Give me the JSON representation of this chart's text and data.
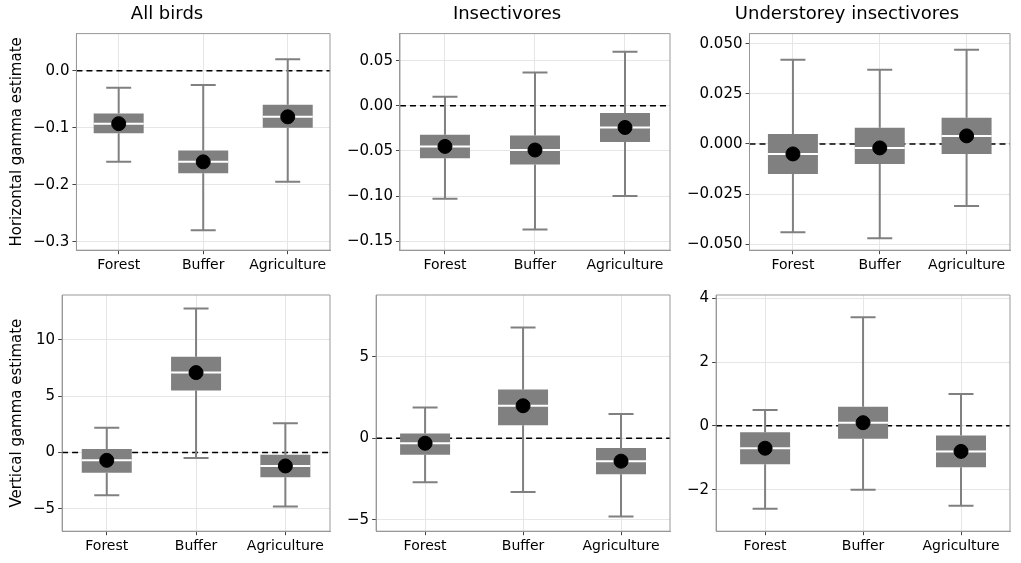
{
  "chart_data": [
    {
      "type": "box",
      "title": "All birds",
      "ylabel": "Horizontal gamma estimate",
      "categories": [
        "Forest",
        "Buffer",
        "Agriculture"
      ],
      "color": "#808080",
      "grid": true,
      "ylim": [
        -0.315,
        0.065
      ],
      "yticks": [
        {
          "value": -0.3,
          "label": "−0.3"
        },
        {
          "value": -0.2,
          "label": "−0.2"
        },
        {
          "value": -0.1,
          "label": "−0.1"
        },
        {
          "value": 0,
          "label": "0.0"
        }
      ],
      "ref_lines": [
        {
          "axis": "y",
          "value": 0,
          "line_style": "dashed",
          "color": "#000000"
        }
      ],
      "boxes": [
        {
          "low": -0.16,
          "q1": -0.11,
          "median": -0.093,
          "q3": -0.075,
          "high": -0.03,
          "mean": -0.093
        },
        {
          "low": -0.28,
          "q1": -0.18,
          "median": -0.16,
          "q3": -0.14,
          "high": -0.025,
          "mean": -0.16
        },
        {
          "low": -0.195,
          "q1": -0.1,
          "median": -0.081,
          "q3": -0.06,
          "high": 0.02,
          "mean": -0.081
        }
      ]
    },
    {
      "type": "box",
      "title": "Insectivores",
      "categories": [
        "Forest",
        "Buffer",
        "Agriculture"
      ],
      "color": "#808080",
      "grid": true,
      "ylim": [
        -0.16,
        0.08
      ],
      "yticks": [
        {
          "value": -0.15,
          "label": "−0.15"
        },
        {
          "value": -0.1,
          "label": "−0.10"
        },
        {
          "value": -0.05,
          "label": "−0.05"
        },
        {
          "value": 0,
          "label": "0.00"
        },
        {
          "value": 0.05,
          "label": "0.05"
        }
      ],
      "ref_lines": [
        {
          "axis": "y",
          "value": 0,
          "line_style": "dashed",
          "color": "#000000"
        }
      ],
      "boxes": [
        {
          "low": -0.103,
          "q1": -0.058,
          "median": -0.045,
          "q3": -0.032,
          "high": 0.01,
          "mean": -0.045
        },
        {
          "low": -0.137,
          "q1": -0.065,
          "median": -0.049,
          "q3": -0.033,
          "high": 0.037,
          "mean": -0.049
        },
        {
          "low": -0.1,
          "q1": -0.04,
          "median": -0.024,
          "q3": -0.008,
          "high": 0.06,
          "mean": -0.024
        }
      ]
    },
    {
      "type": "box",
      "title": "Understorey insectivores",
      "categories": [
        "Forest",
        "Buffer",
        "Agriculture"
      ],
      "color": "#808080",
      "grid": true,
      "ylim": [
        -0.053,
        0.055
      ],
      "yticks": [
        {
          "value": -0.05,
          "label": "−0.050"
        },
        {
          "value": -0.025,
          "label": "−0.025"
        },
        {
          "value": 0,
          "label": "0.000"
        },
        {
          "value": 0.025,
          "label": "0.025"
        },
        {
          "value": 0.05,
          "label": "0.050"
        }
      ],
      "ref_lines": [
        {
          "axis": "y",
          "value": 0,
          "line_style": "dashed",
          "color": "#000000"
        }
      ],
      "boxes": [
        {
          "low": -0.044,
          "q1": -0.015,
          "median": -0.005,
          "q3": 0.005,
          "high": 0.042,
          "mean": -0.005
        },
        {
          "low": -0.047,
          "q1": -0.01,
          "median": -0.002,
          "q3": 0.008,
          "high": 0.037,
          "mean": -0.002
        },
        {
          "low": -0.031,
          "q1": -0.005,
          "median": 0.004,
          "q3": 0.013,
          "high": 0.047,
          "mean": 0.004
        }
      ]
    },
    {
      "type": "box",
      "ylabel": "Vertical gamma estimate",
      "categories": [
        "Forest",
        "Buffer",
        "Agriculture"
      ],
      "color": "#808080",
      "grid": true,
      "ylim": [
        -7,
        14
      ],
      "yticks": [
        {
          "value": -5,
          "label": "−5"
        },
        0,
        5,
        10
      ],
      "ref_lines": [
        {
          "axis": "y",
          "value": 0,
          "line_style": "dashed",
          "color": "#000000"
        }
      ],
      "boxes": [
        {
          "low": -3.8,
          "q1": -1.8,
          "median": -0.7,
          "q3": 0.3,
          "high": 2.2,
          "mean": -0.7
        },
        {
          "low": -0.5,
          "q1": 5.5,
          "median": 7.1,
          "q3": 8.5,
          "high": 12.8,
          "mean": 7.1
        },
        {
          "low": -4.8,
          "q1": -2.2,
          "median": -1.2,
          "q3": -0.2,
          "high": 2.6,
          "mean": -1.2
        }
      ]
    },
    {
      "type": "box",
      "categories": [
        "Forest",
        "Buffer",
        "Agriculture"
      ],
      "color": "#808080",
      "grid": true,
      "ylim": [
        -5.7,
        8.8
      ],
      "yticks": [
        {
          "value": -5,
          "label": "−5"
        },
        0,
        5
      ],
      "ref_lines": [
        {
          "axis": "y",
          "value": 0,
          "line_style": "dashed",
          "color": "#000000"
        }
      ],
      "boxes": [
        {
          "low": -2.7,
          "q1": -1,
          "median": -0.3,
          "q3": 0.3,
          "high": 1.9,
          "mean": -0.3
        },
        {
          "low": -3.3,
          "q1": 0.8,
          "median": 2,
          "q3": 3,
          "high": 6.8,
          "mean": 2
        },
        {
          "low": -4.8,
          "q1": -2.2,
          "median": -1.4,
          "q3": -0.6,
          "high": 1.5,
          "mean": -1.4
        }
      ]
    },
    {
      "type": "box",
      "categories": [
        "Forest",
        "Buffer",
        "Agriculture"
      ],
      "color": "#808080",
      "grid": true,
      "ylim": [
        -3.3,
        4.1
      ],
      "yticks": [
        {
          "value": -2,
          "label": "−2"
        },
        0,
        2,
        4
      ],
      "ref_lines": [
        {
          "axis": "y",
          "value": 0,
          "line_style": "dashed",
          "color": "#000000"
        }
      ],
      "boxes": [
        {
          "low": -2.6,
          "q1": -1.2,
          "median": -0.7,
          "q3": -0.2,
          "high": 0.5,
          "mean": -0.7
        },
        {
          "low": -2,
          "q1": -0.4,
          "median": 0.1,
          "q3": 0.6,
          "high": 3.4,
          "mean": 0.1
        },
        {
          "low": -2.5,
          "q1": -1.3,
          "median": -0.8,
          "q3": -0.3,
          "high": 1,
          "mean": -0.8
        }
      ]
    }
  ]
}
